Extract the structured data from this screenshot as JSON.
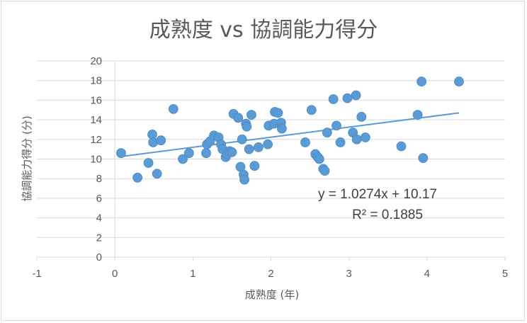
{
  "chart_data": {
    "type": "scatter",
    "title": "成熟度 vs 協調能力得分",
    "xlabel": "成熟度 (年)",
    "ylabel": "協調能力得分 (分)",
    "xlim": [
      -1,
      5
    ],
    "ylim": [
      0,
      20
    ],
    "x_ticks": [
      -1,
      0,
      1,
      2,
      3,
      4,
      5
    ],
    "y_ticks": [
      0,
      2,
      4,
      6,
      8,
      10,
      12,
      14,
      16,
      18,
      20
    ],
    "grid": "horizontal",
    "legend": "none",
    "colors": {
      "points": "#5b9bd5",
      "trendline": "#5b9bd5",
      "grid": "#d9d9d9"
    },
    "points": [
      [
        0.08,
        10.6
      ],
      [
        0.29,
        8.1
      ],
      [
        0.43,
        9.6
      ],
      [
        0.48,
        12.5
      ],
      [
        0.49,
        11.7
      ],
      [
        0.54,
        8.5
      ],
      [
        0.59,
        11.9
      ],
      [
        0.75,
        15.1
      ],
      [
        0.87,
        10.0
      ],
      [
        0.95,
        10.6
      ],
      [
        1.17,
        10.6
      ],
      [
        1.18,
        11.5
      ],
      [
        1.22,
        11.8
      ],
      [
        1.27,
        12.4
      ],
      [
        1.33,
        12.2
      ],
      [
        1.36,
        11.5
      ],
      [
        1.38,
        11.0
      ],
      [
        1.42,
        10.2
      ],
      [
        1.44,
        10.5
      ],
      [
        1.47,
        10.8
      ],
      [
        1.5,
        10.7
      ],
      [
        1.52,
        14.6
      ],
      [
        1.58,
        14.2
      ],
      [
        1.61,
        9.2
      ],
      [
        1.63,
        12.0
      ],
      [
        1.65,
        8.4
      ],
      [
        1.66,
        7.9
      ],
      [
        1.68,
        13.6
      ],
      [
        1.69,
        13.3
      ],
      [
        1.72,
        11.0
      ],
      [
        1.75,
        14.5
      ],
      [
        1.79,
        9.3
      ],
      [
        1.84,
        11.2
      ],
      [
        1.96,
        11.5
      ],
      [
        1.97,
        13.4
      ],
      [
        2.04,
        13.6
      ],
      [
        2.05,
        14.8
      ],
      [
        2.09,
        14.7
      ],
      [
        2.13,
        13.7
      ],
      [
        2.14,
        13.1
      ],
      [
        2.44,
        11.7
      ],
      [
        2.52,
        15.0
      ],
      [
        2.57,
        10.5
      ],
      [
        2.6,
        10.2
      ],
      [
        2.62,
        10.0
      ],
      [
        2.67,
        9.0
      ],
      [
        2.69,
        8.8
      ],
      [
        2.72,
        12.7
      ],
      [
        2.8,
        16.1
      ],
      [
        2.84,
        13.4
      ],
      [
        2.89,
        11.7
      ],
      [
        2.98,
        16.2
      ],
      [
        3.05,
        12.7
      ],
      [
        3.09,
        16.5
      ],
      [
        3.1,
        12.0
      ],
      [
        3.16,
        14.3
      ],
      [
        3.21,
        12.2
      ],
      [
        3.67,
        11.3
      ],
      [
        3.88,
        14.5
      ],
      [
        3.93,
        17.9
      ],
      [
        3.95,
        10.1
      ],
      [
        4.41,
        17.9
      ]
    ],
    "trendline": {
      "type": "linear",
      "slope": 1.0274,
      "intercept": 10.17,
      "x_range": [
        0.08,
        4.41
      ],
      "equation_label": "y = 1.0274x + 10.17",
      "r2_label": "R² = 0.1885"
    }
  }
}
